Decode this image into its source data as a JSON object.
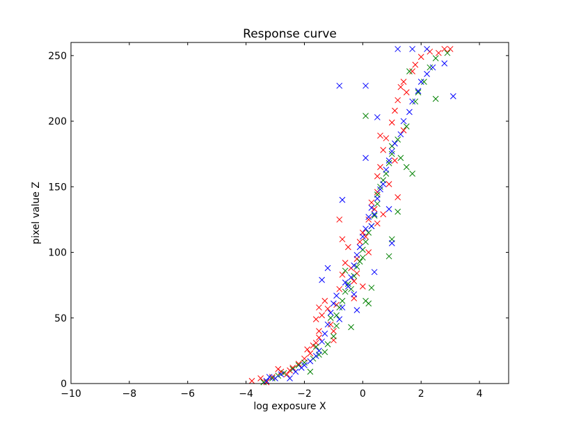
{
  "chart_data": {
    "type": "scatter",
    "title": "Response curve",
    "xlabel": "log exposure X",
    "ylabel": "pixel value Z",
    "xlim": [
      -10,
      5
    ],
    "ylim": [
      0,
      260
    ],
    "xticks": [
      -10,
      -8,
      -6,
      -4,
      -2,
      0,
      2,
      4
    ],
    "xtick_labels": [
      "−10",
      "−8",
      "−6",
      "−4",
      "−2",
      "0",
      "2",
      "4"
    ],
    "yticks": [
      0,
      50,
      100,
      150,
      200,
      250
    ],
    "ytick_labels": [
      "0",
      "50",
      "100",
      "150",
      "200",
      "250"
    ],
    "grid": false,
    "marker": "x",
    "series": [
      {
        "color": "#ff0000",
        "points": [
          [
            -3.8,
            2
          ],
          [
            -3.5,
            4
          ],
          [
            -3.3,
            1
          ],
          [
            -3.1,
            5
          ],
          [
            -2.9,
            11
          ],
          [
            -2.8,
            9
          ],
          [
            -2.6,
            7
          ],
          [
            -2.4,
            12
          ],
          [
            -2.2,
            15
          ],
          [
            -2.0,
            19
          ],
          [
            -1.9,
            26
          ],
          [
            -1.8,
            23
          ],
          [
            -1.7,
            29
          ],
          [
            -1.6,
            31
          ],
          [
            -1.5,
            35
          ],
          [
            -1.5,
            40
          ],
          [
            -1.6,
            49
          ],
          [
            -1.4,
            52
          ],
          [
            -1.5,
            58
          ],
          [
            -1.3,
            63
          ],
          [
            -1.2,
            57
          ],
          [
            -1.1,
            45
          ],
          [
            -1.0,
            40
          ],
          [
            -0.9,
            60
          ],
          [
            -0.8,
            72
          ],
          [
            -0.7,
            83
          ],
          [
            -0.6,
            92
          ],
          [
            -0.5,
            104
          ],
          [
            -0.7,
            110
          ],
          [
            -0.8,
            125
          ],
          [
            -0.4,
            88
          ],
          [
            -0.3,
            78
          ],
          [
            -0.2,
            95
          ],
          [
            -0.1,
            108
          ],
          [
            0.0,
            115
          ],
          [
            0.1,
            112
          ],
          [
            0.2,
            125
          ],
          [
            0.3,
            138
          ],
          [
            0.4,
            133
          ],
          [
            0.5,
            146
          ],
          [
            0.5,
            158
          ],
          [
            0.6,
            165
          ],
          [
            0.7,
            178
          ],
          [
            0.6,
            189
          ],
          [
            0.8,
            187
          ],
          [
            1.0,
            199
          ],
          [
            1.1,
            208
          ],
          [
            1.2,
            216
          ],
          [
            1.3,
            226
          ],
          [
            1.4,
            230
          ],
          [
            1.5,
            222
          ],
          [
            1.7,
            238
          ],
          [
            1.8,
            243
          ],
          [
            2.0,
            249
          ],
          [
            2.3,
            253
          ],
          [
            2.6,
            252
          ],
          [
            2.8,
            255
          ],
          [
            3.0,
            255
          ],
          [
            1.4,
            193
          ],
          [
            1.2,
            142
          ],
          [
            0.9,
            152
          ],
          [
            0.0,
            74
          ],
          [
            -0.3,
            65
          ],
          [
            -1.0,
            33
          ],
          [
            -2.5,
            10
          ],
          [
            0.2,
            100
          ],
          [
            0.5,
            122
          ],
          [
            1.1,
            170
          ],
          [
            -0.2,
            84
          ],
          [
            0.7,
            129
          ]
        ]
      },
      {
        "color": "#008000",
        "points": [
          [
            -3.4,
            1
          ],
          [
            -3.1,
            4
          ],
          [
            -2.9,
            6
          ],
          [
            -2.7,
            8
          ],
          [
            -2.4,
            11
          ],
          [
            -2.2,
            14
          ],
          [
            -2.0,
            16
          ],
          [
            -1.8,
            9
          ],
          [
            -1.7,
            19
          ],
          [
            -1.5,
            22
          ],
          [
            -1.3,
            24
          ],
          [
            -1.2,
            30
          ],
          [
            -1.0,
            36
          ],
          [
            -0.9,
            44
          ],
          [
            -0.9,
            52
          ],
          [
            -0.8,
            58
          ],
          [
            -0.7,
            63
          ],
          [
            -0.6,
            70
          ],
          [
            -0.5,
            76
          ],
          [
            -0.4,
            72
          ],
          [
            -0.3,
            82
          ],
          [
            -0.2,
            89
          ],
          [
            -0.1,
            93
          ],
          [
            0.0,
            96
          ],
          [
            0.2,
            61
          ],
          [
            0.1,
            63
          ],
          [
            0.0,
            102
          ],
          [
            0.1,
            108
          ],
          [
            0.2,
            115
          ],
          [
            0.3,
            120
          ],
          [
            0.4,
            128
          ],
          [
            0.5,
            137
          ],
          [
            0.5,
            144
          ],
          [
            0.6,
            150
          ],
          [
            0.7,
            155
          ],
          [
            0.8,
            160
          ],
          [
            0.9,
            168
          ],
          [
            1.0,
            175
          ],
          [
            1.0,
            181
          ],
          [
            1.2,
            186
          ],
          [
            1.3,
            172
          ],
          [
            1.5,
            165
          ],
          [
            1.7,
            160
          ],
          [
            1.5,
            196
          ],
          [
            1.8,
            215
          ],
          [
            1.9,
            222
          ],
          [
            2.1,
            230
          ],
          [
            2.3,
            241
          ],
          [
            2.5,
            248
          ],
          [
            2.9,
            252
          ],
          [
            2.5,
            217
          ],
          [
            1.0,
            110
          ],
          [
            1.2,
            131
          ],
          [
            0.9,
            97
          ],
          [
            0.1,
            204
          ],
          [
            -0.6,
            86
          ],
          [
            -1.1,
            50
          ],
          [
            -1.6,
            28
          ],
          [
            -0.4,
            43
          ],
          [
            0.3,
            73
          ],
          [
            1.6,
            238
          ]
        ]
      },
      {
        "color": "#0000ff",
        "points": [
          [
            -3.3,
            2
          ],
          [
            -3.2,
            5
          ],
          [
            -3.0,
            4
          ],
          [
            -2.8,
            7
          ],
          [
            -2.5,
            4
          ],
          [
            -2.3,
            9
          ],
          [
            -2.1,
            12
          ],
          [
            -2.0,
            14
          ],
          [
            -1.8,
            17
          ],
          [
            -1.6,
            21
          ],
          [
            -1.5,
            25
          ],
          [
            -1.4,
            32
          ],
          [
            -1.3,
            38
          ],
          [
            -1.2,
            45
          ],
          [
            -1.1,
            54
          ],
          [
            -1.0,
            61
          ],
          [
            -0.9,
            67
          ],
          [
            -0.8,
            49
          ],
          [
            -0.7,
            58
          ],
          [
            -0.6,
            77
          ],
          [
            -0.5,
            74
          ],
          [
            -0.4,
            81
          ],
          [
            -0.3,
            68
          ],
          [
            -0.3,
            90
          ],
          [
            -0.2,
            98
          ],
          [
            -0.1,
            104
          ],
          [
            0.0,
            112
          ],
          [
            0.1,
            118
          ],
          [
            0.2,
            127
          ],
          [
            0.3,
            134
          ],
          [
            0.4,
            129
          ],
          [
            0.5,
            141
          ],
          [
            0.6,
            148
          ],
          [
            0.7,
            152
          ],
          [
            0.8,
            163
          ],
          [
            0.9,
            170
          ],
          [
            1.0,
            177
          ],
          [
            1.1,
            183
          ],
          [
            1.3,
            190
          ],
          [
            1.4,
            200
          ],
          [
            1.6,
            207
          ],
          [
            1.7,
            215
          ],
          [
            1.9,
            223
          ],
          [
            2.0,
            230
          ],
          [
            2.2,
            236
          ],
          [
            2.4,
            241
          ],
          [
            2.8,
            244
          ],
          [
            3.1,
            219
          ],
          [
            -0.8,
            227
          ],
          [
            0.1,
            227
          ],
          [
            0.5,
            203
          ],
          [
            0.1,
            172
          ],
          [
            -0.7,
            140
          ],
          [
            -1.2,
            88
          ],
          [
            -1.4,
            79
          ],
          [
            0.4,
            85
          ],
          [
            1.2,
            255
          ],
          [
            1.7,
            255
          ],
          [
            2.2,
            255
          ],
          [
            0.3,
            120
          ],
          [
            1.0,
            107
          ],
          [
            0.9,
            133
          ],
          [
            -0.2,
            56
          ]
        ]
      }
    ]
  }
}
